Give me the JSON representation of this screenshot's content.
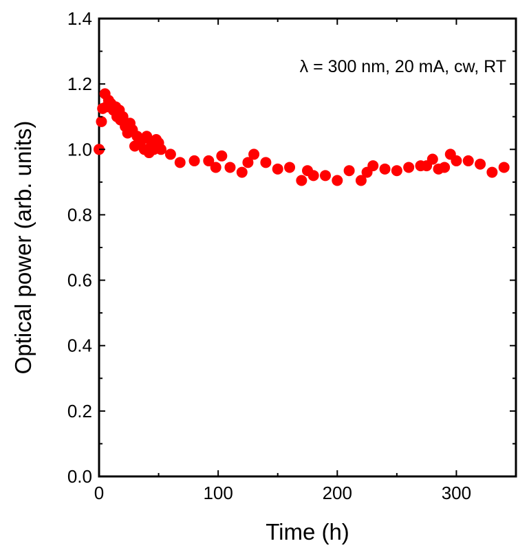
{
  "chart_data": {
    "type": "scatter",
    "title": "",
    "xlabel": "Time (h)",
    "ylabel": "Optical power (arb. units)",
    "xlim": [
      0,
      350
    ],
    "ylim": [
      0.0,
      1.4
    ],
    "xticks": [
      0,
      100,
      200,
      300
    ],
    "xtick_labels": [
      "0",
      "100",
      "200",
      "300"
    ],
    "xminor": [
      50,
      150,
      250,
      350
    ],
    "yticks": [
      0.0,
      0.2,
      0.4,
      0.6,
      0.8,
      1.0,
      1.2,
      1.4
    ],
    "ytick_labels": [
      "0.0",
      "0.2",
      "0.4",
      "0.6",
      "0.8",
      "1.0",
      "1.2",
      "1.4"
    ],
    "yminor": [
      0.1,
      0.3,
      0.5,
      0.7,
      0.9,
      1.1,
      1.3
    ],
    "grid": false,
    "annotation": "λ = 300 nm, 20 mA, cw, RT",
    "marker_color": "#ff0000",
    "series": [
      {
        "name": "Optical power",
        "x": [
          0,
          2,
          3,
          5,
          6,
          8,
          10,
          12,
          14,
          15,
          17,
          18,
          20,
          22,
          24,
          26,
          28,
          30,
          32,
          34,
          36,
          38,
          40,
          42,
          44,
          46,
          48,
          50,
          52,
          60,
          68,
          80,
          92,
          98,
          103,
          110,
          120,
          125,
          130,
          140,
          150,
          160,
          170,
          175,
          180,
          190,
          200,
          210,
          220,
          225,
          230,
          240,
          250,
          260,
          270,
          275,
          280,
          285,
          290,
          295,
          300,
          310,
          320,
          330,
          340
        ],
        "y": [
          1.0,
          1.085,
          1.125,
          1.17,
          1.13,
          1.15,
          1.14,
          1.12,
          1.13,
          1.1,
          1.12,
          1.09,
          1.1,
          1.07,
          1.05,
          1.08,
          1.06,
          1.01,
          1.04,
          1.02,
          1.03,
          1.0,
          1.04,
          0.99,
          1.02,
          1.0,
          1.03,
          1.02,
          1.0,
          0.985,
          0.96,
          0.965,
          0.965,
          0.945,
          0.98,
          0.945,
          0.93,
          0.96,
          0.985,
          0.96,
          0.94,
          0.945,
          0.905,
          0.935,
          0.92,
          0.92,
          0.905,
          0.935,
          0.905,
          0.93,
          0.95,
          0.94,
          0.935,
          0.945,
          0.95,
          0.95,
          0.97,
          0.94,
          0.945,
          0.985,
          0.965,
          0.965,
          0.955,
          0.93,
          0.945
        ]
      }
    ]
  }
}
